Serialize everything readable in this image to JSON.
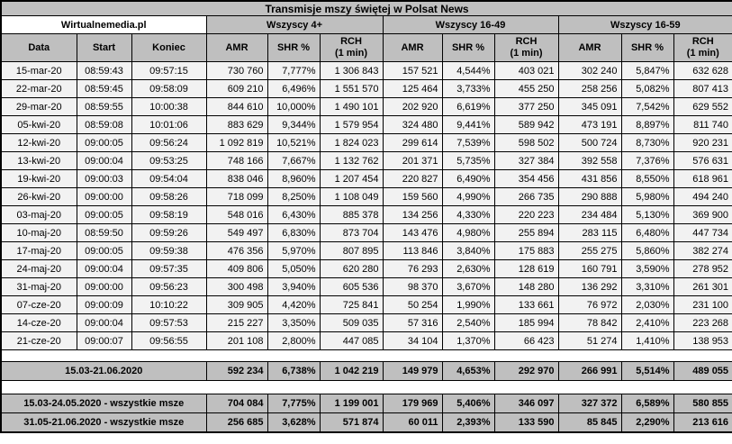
{
  "chart_data": {
    "type": "table",
    "title": "Transmisje mszy świętej w Polsat News",
    "source": "Wirtualnemedia.pl",
    "groups": [
      "Wszyscy 4+",
      "Wszyscy 16-49",
      "Wszyscy 16-59"
    ],
    "columns": [
      "Data",
      "Start",
      "Koniec",
      "AMR",
      "SHR %",
      "RCH\n(1 min)",
      "AMR",
      "SHR %",
      "RCH\n(1 min)",
      "AMR",
      "SHR %",
      "RCH\n(1 min)"
    ],
    "rows": [
      [
        "15-mar-20",
        "08:59:43",
        "09:57:15",
        "730 760",
        "7,777%",
        "1 306 843",
        "157 521",
        "4,544%",
        "403 021",
        "302 240",
        "5,847%",
        "632 628"
      ],
      [
        "22-mar-20",
        "08:59:45",
        "09:58:09",
        "609 210",
        "6,496%",
        "1 551 570",
        "125 464",
        "3,733%",
        "455 250",
        "258 256",
        "5,082%",
        "807 413"
      ],
      [
        "29-mar-20",
        "08:59:55",
        "10:00:38",
        "844 610",
        "10,000%",
        "1 490 101",
        "202 920",
        "6,619%",
        "377 250",
        "345 091",
        "7,542%",
        "629 552"
      ],
      [
        "05-kwi-20",
        "08:59:08",
        "10:01:06",
        "883 629",
        "9,344%",
        "1 579 954",
        "324 480",
        "9,441%",
        "589 942",
        "473 191",
        "8,897%",
        "811 740"
      ],
      [
        "12-kwi-20",
        "09:00:05",
        "09:56:24",
        "1 092 819",
        "10,521%",
        "1 824 023",
        "299 614",
        "7,539%",
        "598 502",
        "500 724",
        "8,730%",
        "920 231"
      ],
      [
        "13-kwi-20",
        "09:00:04",
        "09:53:25",
        "748 166",
        "7,667%",
        "1 132 762",
        "201 371",
        "5,735%",
        "327 384",
        "392 558",
        "7,376%",
        "576 631"
      ],
      [
        "19-kwi-20",
        "09:00:03",
        "09:54:04",
        "838 046",
        "8,960%",
        "1 207 454",
        "220 827",
        "6,490%",
        "354 456",
        "431 856",
        "8,550%",
        "618 961"
      ],
      [
        "26-kwi-20",
        "09:00:00",
        "09:58:26",
        "718 099",
        "8,250%",
        "1 108 049",
        "159 560",
        "4,990%",
        "266 735",
        "290 888",
        "5,980%",
        "494 240"
      ],
      [
        "03-maj-20",
        "09:00:05",
        "09:58:19",
        "548 016",
        "6,430%",
        "885 378",
        "134 256",
        "4,330%",
        "220 223",
        "234 484",
        "5,130%",
        "369 900"
      ],
      [
        "10-maj-20",
        "08:59:50",
        "09:59:26",
        "549 497",
        "6,830%",
        "873 704",
        "143 476",
        "4,980%",
        "255 894",
        "283 115",
        "6,480%",
        "447 734"
      ],
      [
        "17-maj-20",
        "09:00:05",
        "09:59:38",
        "476 356",
        "5,970%",
        "807 895",
        "113 846",
        "3,840%",
        "175 883",
        "255 275",
        "5,860%",
        "382 274"
      ],
      [
        "24-maj-20",
        "09:00:04",
        "09:57:35",
        "409 806",
        "5,050%",
        "620 280",
        "76 293",
        "2,630%",
        "128 619",
        "160 791",
        "3,590%",
        "278 952"
      ],
      [
        "31-maj-20",
        "09:00:00",
        "09:56:23",
        "300 498",
        "3,940%",
        "605 536",
        "98 370",
        "3,670%",
        "148 280",
        "136 292",
        "3,310%",
        "261 301"
      ],
      [
        "07-cze-20",
        "09:00:09",
        "10:10:22",
        "309 905",
        "4,420%",
        "725 841",
        "50 254",
        "1,990%",
        "133 661",
        "76 972",
        "2,030%",
        "231 100"
      ],
      [
        "14-cze-20",
        "09:00:04",
        "09:57:53",
        "215 227",
        "3,350%",
        "509 035",
        "57 316",
        "2,540%",
        "185 994",
        "78 842",
        "2,410%",
        "223 268"
      ],
      [
        "21-cze-20",
        "09:00:07",
        "09:56:55",
        "201 108",
        "2,800%",
        "447 085",
        "34 104",
        "1,370%",
        "66 423",
        "51 274",
        "1,410%",
        "138 953"
      ]
    ],
    "summary": {
      "label": "15.03-21.06.2020",
      "values": [
        "592 234",
        "6,738%",
        "1 042 219",
        "149 979",
        "4,653%",
        "292 970",
        "266 991",
        "5,514%",
        "489 055"
      ]
    },
    "footer_rows": [
      {
        "label": "15.03-24.05.2020 - wszystkie msze",
        "values": [
          "704 084",
          "7,775%",
          "1 199 001",
          "179 969",
          "5,406%",
          "346 097",
          "327 372",
          "6,589%",
          "580 855"
        ]
      },
      {
        "label": "31.05-21.06.2020 - wszystkie msze",
        "values": [
          "256 685",
          "3,628%",
          "571 874",
          "60 011",
          "2,393%",
          "133 590",
          "85 845",
          "2,290%",
          "213 616"
        ]
      }
    ]
  },
  "colors": {
    "header_bg": "#bfbfbf",
    "title_bg": "#c0c0c0",
    "row_bg": "#f2f2f2",
    "spacer_bg": "#ffffff",
    "border": "#000000"
  }
}
